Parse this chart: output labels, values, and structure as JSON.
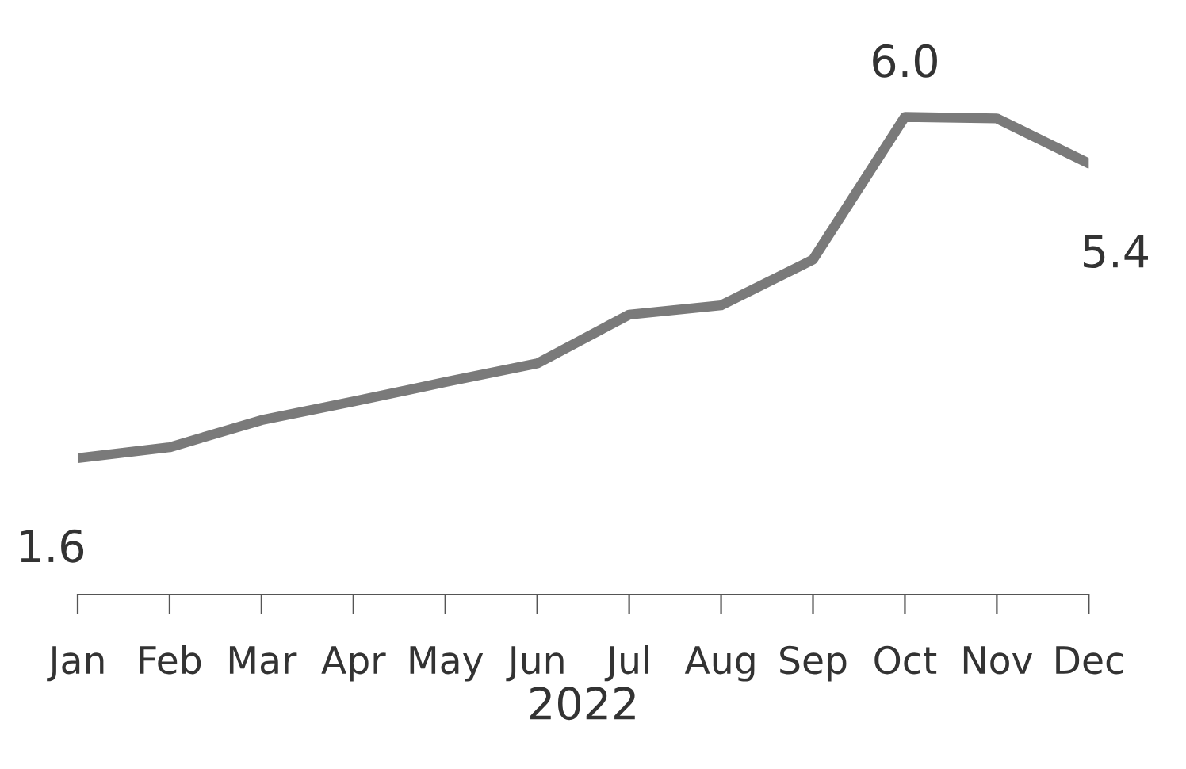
{
  "chart_data": {
    "type": "line",
    "xlabel": "2022",
    "categories": [
      "Jan",
      "Feb",
      "Mar",
      "Apr",
      "May",
      "Jun",
      "Jul",
      "Aug",
      "Sep",
      "Oct",
      "Nov",
      "Dec"
    ],
    "series": [
      {
        "color": "#7a7a7a",
        "values": [
          1.6,
          1.74,
          2.09,
          2.33,
          2.58,
          2.82,
          3.45,
          3.57,
          4.16,
          6.0,
          5.98,
          5.4
        ],
        "value_labels": [
          "1.6",
          null,
          null,
          null,
          null,
          null,
          null,
          null,
          null,
          "6.0",
          null,
          "5.4"
        ]
      }
    ],
    "grid": false,
    "legend": false,
    "tick_labels": "x",
    "marker": "none",
    "line_style": "solid"
  }
}
